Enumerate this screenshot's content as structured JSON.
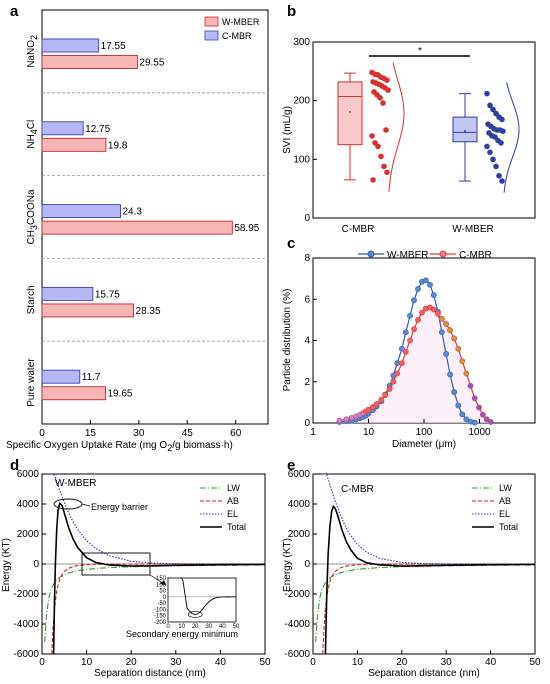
{
  "panels": {
    "a": "a",
    "b": "b",
    "c": "c",
    "d": "d",
    "e": "e"
  },
  "chart_data": [
    {
      "panel": "a",
      "type": "bar",
      "orientation": "horizontal",
      "categories": [
        "NaNO2",
        "NH4Cl",
        "CH3COONa",
        "Starch",
        "Pure water"
      ],
      "category_labels": [
        {
          "main": "NaNO",
          "sub": "2"
        },
        {
          "main": "NH",
          "sub": "4",
          "rest": "Cl"
        },
        {
          "main": "CH",
          "sub": "3",
          "rest": "COONa"
        },
        {
          "main": "Starch"
        },
        {
          "main": "Pure water"
        }
      ],
      "series": [
        {
          "name": "W-MBER",
          "values": [
            29.55,
            19.8,
            58.95,
            28.35,
            19.65
          ],
          "color": "#f7b6b6",
          "edge": "#c0282f"
        },
        {
          "name": "C-MBR",
          "values": [
            17.55,
            12.75,
            24.3,
            15.75,
            11.7
          ],
          "color": "#b6b8f5",
          "edge": "#3c3fb8"
        }
      ],
      "value_labels": {
        "W-MBER": [
          "29.55",
          "19.8",
          "58.95",
          "28.35",
          "19.65"
        ],
        "C-MBR": [
          "17.55",
          "12.75",
          "24.3",
          "15.75",
          "11.7"
        ]
      },
      "xlabel": "Specific Oxygen Uptake Rate (mg O",
      "xlabel_sub": "2",
      "xlabel_rest": "/g biomass·h)",
      "xlim": [
        0,
        70
      ],
      "xticks": [
        "0",
        "15",
        "30",
        "45",
        "60"
      ],
      "legend": "top-right"
    },
    {
      "panel": "b",
      "type": "box",
      "categories": [
        "C-MBR",
        "W-MBER"
      ],
      "ylabel": "SVI (mL/g)",
      "ylim": [
        0,
        300
      ],
      "yticks": [
        "0",
        "100",
        "200",
        "300"
      ],
      "significance": "*",
      "series": [
        {
          "name": "C-MBR",
          "min": 65,
          "q1": 125,
          "median": 207,
          "mean": 181,
          "q3": 232,
          "max": 247,
          "color": "#d93030",
          "fill": "#f7c9c9",
          "points": [
            248,
            245,
            244,
            240,
            238,
            235,
            232,
            230,
            228,
            225,
            222,
            218,
            215,
            210,
            205,
            196,
            150,
            140,
            128,
            122,
            105,
            88,
            78,
            65
          ]
        },
        {
          "name": "W-MBER",
          "min": 63,
          "q1": 130,
          "median": 146,
          "mean": 148,
          "q3": 172,
          "max": 212,
          "color": "#2f3fa0",
          "fill": "#c3c5f3",
          "points": [
            212,
            192,
            185,
            178,
            172,
            168,
            160,
            156,
            152,
            150,
            150,
            148,
            145,
            140,
            138,
            132,
            128,
            122,
            112,
            100,
            88,
            72,
            63
          ]
        }
      ]
    },
    {
      "panel": "c",
      "type": "line",
      "xscale": "log",
      "xlabel": "Diameter (μm)",
      "ylabel": "Particle distribution (%)",
      "xlim": [
        1,
        10000
      ],
      "ylim": [
        0,
        8
      ],
      "xticks": [
        "1",
        "10",
        "100",
        "1000"
      ],
      "yticks": [
        "0",
        "2",
        "4",
        "6",
        "8"
      ],
      "legend": "top",
      "series": [
        {
          "name": "W-MBER",
          "color": "#2f5fae",
          "x": [
            3,
            4,
            5,
            6,
            7,
            8,
            9,
            10,
            12,
            14,
            17,
            20,
            24,
            28,
            33,
            40,
            47,
            56,
            66,
            78,
            92,
            108,
            128,
            150,
            178,
            210,
            250,
            295,
            350,
            415,
            490,
            580,
            690,
            820
          ],
          "y": [
            0.05,
            0.08,
            0.12,
            0.17,
            0.23,
            0.3,
            0.38,
            0.47,
            0.62,
            0.8,
            1.05,
            1.38,
            1.8,
            2.3,
            2.9,
            3.6,
            4.4,
            5.2,
            5.95,
            6.5,
            6.85,
            6.92,
            6.7,
            6.2,
            5.4,
            4.4,
            3.35,
            2.35,
            1.5,
            0.85,
            0.42,
            0.18,
            0.07,
            0.02
          ]
        },
        {
          "name": "C-MBR",
          "color": "#e03a3a",
          "x": [
            3,
            4,
            5,
            6,
            7,
            8,
            9,
            10,
            12,
            14,
            17,
            20,
            24,
            28,
            33,
            40,
            47,
            56,
            66,
            78,
            92,
            108,
            128,
            150,
            178,
            210,
            250,
            295,
            350,
            415,
            490,
            580,
            690,
            820,
            980,
            1150,
            1350,
            1600
          ],
          "y": [
            0.12,
            0.18,
            0.25,
            0.32,
            0.4,
            0.48,
            0.56,
            0.65,
            0.78,
            0.92,
            1.12,
            1.35,
            1.65,
            2.0,
            2.4,
            2.9,
            3.45,
            4.0,
            4.55,
            5.0,
            5.35,
            5.55,
            5.6,
            5.5,
            5.3,
            5.05,
            4.8,
            4.5,
            4.1,
            3.6,
            3.0,
            2.4,
            1.8,
            1.2,
            0.75,
            0.4,
            0.18,
            0.05
          ]
        }
      ]
    },
    {
      "panel": "d",
      "type": "line",
      "title": "W-MBER",
      "xlabel": "Separation distance (nm)",
      "ylabel": "Energy (KT)",
      "xlim": [
        0,
        50
      ],
      "ylim": [
        -6000,
        6000
      ],
      "xticks": [
        "0",
        "10",
        "20",
        "30",
        "40",
        "50"
      ],
      "yticks": [
        "-6000",
        "-4000",
        "-2000",
        "0",
        "2000",
        "4000",
        "6000"
      ],
      "legend": "top-right",
      "series": [
        {
          "name": "LW",
          "color": "#3a9a3a",
          "dash": "6,2,1,2",
          "x": [
            0.6,
            1,
            1.5,
            2,
            3,
            4,
            5,
            6,
            8,
            10,
            12,
            15,
            20,
            30,
            40,
            50
          ],
          "y": [
            -5200,
            -3500,
            -2300,
            -1700,
            -1150,
            -880,
            -720,
            -600,
            -450,
            -360,
            -300,
            -240,
            -180,
            -120,
            -90,
            -70
          ]
        },
        {
          "name": "AB",
          "color": "#c0282f",
          "dash": "4,2",
          "x": [
            2.2,
            2.5,
            2.8,
            3.2,
            3.6,
            4,
            4.5,
            5,
            6,
            7,
            8,
            10,
            12,
            15,
            20,
            30,
            50
          ],
          "y": [
            -6000,
            -4200,
            -3000,
            -2000,
            -1400,
            -1000,
            -700,
            -500,
            -280,
            -170,
            -110,
            -50,
            -25,
            -10,
            -3,
            0,
            0
          ]
        },
        {
          "name": "EL",
          "color": "#2a3aa0",
          "dash": "1.5,1.5",
          "x": [
            2,
            2.5,
            3,
            3.5,
            4,
            5,
            6,
            7,
            8,
            10,
            12,
            15,
            20,
            25,
            30,
            40,
            50
          ],
          "y": [
            6000,
            6000,
            5800,
            5300,
            4900,
            4100,
            3400,
            2800,
            2300,
            1550,
            1050,
            560,
            180,
            60,
            20,
            2,
            0
          ]
        },
        {
          "name": "Total",
          "color": "#000000",
          "dash": "",
          "x": [
            2.6,
            2.8,
            3.0,
            3.3,
            3.6,
            4.0,
            4.5,
            5.0,
            6.0,
            7.0,
            8.0,
            10,
            12,
            15,
            20,
            25,
            30,
            40,
            50
          ],
          "y": [
            -6000,
            -2500,
            0,
            2300,
            3600,
            4050,
            3900,
            3400,
            2400,
            1650,
            1100,
            420,
            110,
            -60,
            -140,
            -120,
            -90,
            -45,
            -25
          ]
        }
      ],
      "annotations": {
        "barrier": "Energy barrier",
        "secondary": "Secondary energy minimum",
        "inset_yticks": [
          "150",
          "100",
          "50",
          "0",
          "-50",
          "-100",
          "-150",
          "-200"
        ],
        "inset_xticks": [
          "0",
          "10",
          "20",
          "30",
          "40",
          "50"
        ]
      }
    },
    {
      "panel": "e",
      "type": "line",
      "title": "C-MBR",
      "xlabel": "Separation distance (nm)",
      "ylabel": "Energy (KT)",
      "xlim": [
        0,
        50
      ],
      "ylim": [
        -6000,
        6000
      ],
      "xticks": [
        "0",
        "10",
        "20",
        "30",
        "40",
        "50"
      ],
      "yticks": [
        "-6000",
        "-4000",
        "-2000",
        "0",
        "2000",
        "4000",
        "6000"
      ],
      "legend": "top-right",
      "series": [
        {
          "name": "LW",
          "color": "#3a9a3a",
          "dash": "6,2,1,2",
          "x": [
            0.6,
            1,
            1.5,
            2,
            3,
            4,
            5,
            6,
            8,
            10,
            12,
            15,
            20,
            30,
            40,
            50
          ],
          "y": [
            -5200,
            -3500,
            -2300,
            -1700,
            -1150,
            -880,
            -720,
            -600,
            -450,
            -360,
            -300,
            -240,
            -180,
            -120,
            -90,
            -70
          ]
        },
        {
          "name": "AB",
          "color": "#c0282f",
          "dash": "4,2",
          "x": [
            2.2,
            2.5,
            2.8,
            3.2,
            3.6,
            4,
            4.5,
            5,
            6,
            7,
            8,
            10,
            12,
            15,
            20,
            30,
            50
          ],
          "y": [
            -6000,
            -4200,
            -3000,
            -2000,
            -1400,
            -1000,
            -700,
            -500,
            -280,
            -170,
            -110,
            -50,
            -25,
            -10,
            -3,
            0,
            0
          ]
        },
        {
          "name": "EL",
          "color": "#2a3aa0",
          "dash": "1.5,1.5",
          "x": [
            2.5,
            3,
            3.5,
            4,
            5,
            6,
            7,
            8,
            10,
            12,
            15,
            20,
            25,
            30,
            40,
            50
          ],
          "y": [
            6000,
            6000,
            5600,
            5100,
            4200,
            3400,
            2700,
            2100,
            1300,
            800,
            380,
            100,
            30,
            8,
            0,
            0
          ]
        },
        {
          "name": "Total",
          "color": "#000000",
          "dash": "",
          "x": [
            2.8,
            3.1,
            3.4,
            3.8,
            4.2,
            4.6,
            5.0,
            5.5,
            6.5,
            7.5,
            8.5,
            10,
            12,
            15,
            20,
            30,
            40,
            50
          ],
          "y": [
            -6000,
            -2000,
            600,
            2500,
            3500,
            3850,
            3700,
            3300,
            2300,
            1500,
            950,
            380,
            90,
            -60,
            -140,
            -90,
            -45,
            -25
          ]
        }
      ]
    }
  ]
}
